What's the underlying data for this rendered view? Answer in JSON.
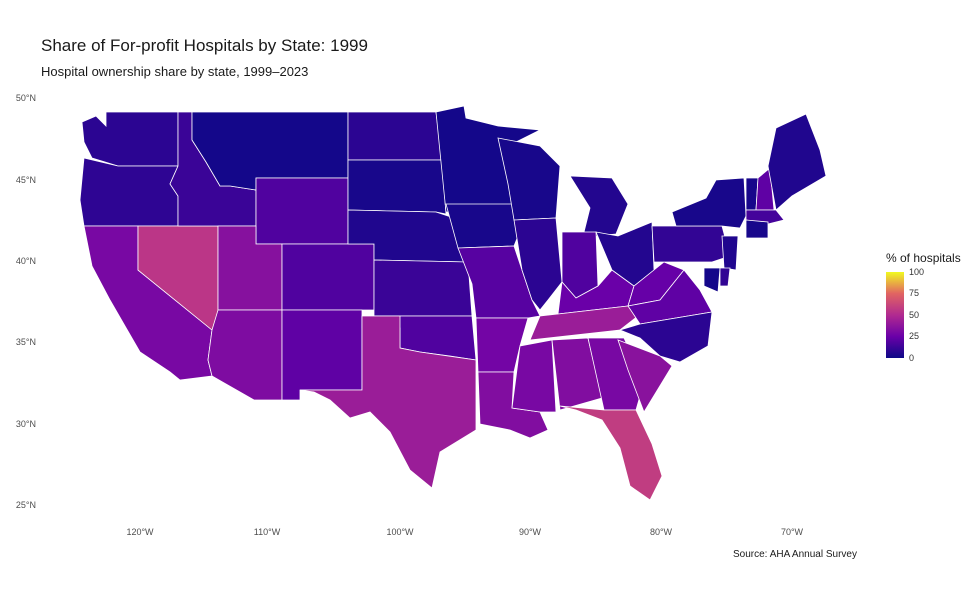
{
  "chart_data": {
    "type": "choropleth",
    "title": "Share of For-profit Hospitals by State: 1999",
    "subtitle": "Hospital ownership share by state, 1999–2023",
    "caption": "Source: AHA Annual Survey",
    "legend": {
      "title": "% of hospitals",
      "ticks": [
        "100",
        "75",
        "50",
        "25",
        "0"
      ],
      "range": [
        0,
        100
      ],
      "palette": "plasma"
    },
    "lat_ticks": [
      "50°N",
      "45°N",
      "40°N",
      "35°N",
      "30°N",
      "25°N"
    ],
    "lon_ticks": [
      "120°W",
      "110°W",
      "100°W",
      "90°W",
      "80°W",
      "70°W"
    ],
    "states": [
      {
        "name": "WA",
        "value": 8
      },
      {
        "name": "OR",
        "value": 9
      },
      {
        "name": "CA",
        "value": 30
      },
      {
        "name": "NV",
        "value": 55
      },
      {
        "name": "ID",
        "value": 12
      },
      {
        "name": "MT",
        "value": 2
      },
      {
        "name": "WY",
        "value": 18
      },
      {
        "name": "UT",
        "value": 35
      },
      {
        "name": "AZ",
        "value": 32
      },
      {
        "name": "CO",
        "value": 18
      },
      {
        "name": "NM",
        "value": 22
      },
      {
        "name": "ND",
        "value": 8
      },
      {
        "name": "SD",
        "value": 3
      },
      {
        "name": "NE",
        "value": 5
      },
      {
        "name": "KS",
        "value": 12
      },
      {
        "name": "OK",
        "value": 18
      },
      {
        "name": "TX",
        "value": 42
      },
      {
        "name": "MN",
        "value": 2
      },
      {
        "name": "IA",
        "value": 3
      },
      {
        "name": "MO",
        "value": 20
      },
      {
        "name": "AR",
        "value": 28
      },
      {
        "name": "LA",
        "value": 33
      },
      {
        "name": "WI",
        "value": 3
      },
      {
        "name": "IL",
        "value": 8
      },
      {
        "name": "MS",
        "value": 30
      },
      {
        "name": "MI",
        "value": 6
      },
      {
        "name": "IN",
        "value": 18
      },
      {
        "name": "KY",
        "value": 25
      },
      {
        "name": "TN",
        "value": 42
      },
      {
        "name": "AL",
        "value": 33
      },
      {
        "name": "GA",
        "value": 30
      },
      {
        "name": "FL",
        "value": 58
      },
      {
        "name": "OH",
        "value": 6
      },
      {
        "name": "WV",
        "value": 24
      },
      {
        "name": "VA",
        "value": 22
      },
      {
        "name": "NC",
        "value": 8
      },
      {
        "name": "SC",
        "value": 36
      },
      {
        "name": "PA",
        "value": 10
      },
      {
        "name": "NY",
        "value": 3
      },
      {
        "name": "VT",
        "value": 3
      },
      {
        "name": "NH",
        "value": 22
      },
      {
        "name": "ME",
        "value": 5
      },
      {
        "name": "MA",
        "value": 15
      },
      {
        "name": "NJ",
        "value": 5
      },
      {
        "name": "MD",
        "value": 2
      },
      {
        "name": "DE",
        "value": 10
      },
      {
        "name": "CT",
        "value": 3
      }
    ]
  }
}
